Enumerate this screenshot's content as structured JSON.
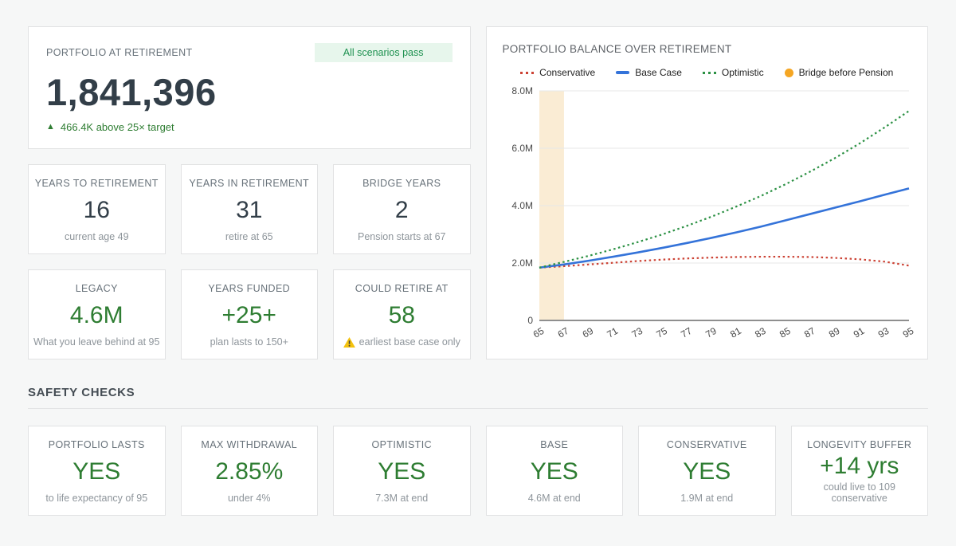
{
  "hero": {
    "label": "PORTFOLIO AT RETIREMENT",
    "value": "1,841,396",
    "badge": "All scenarios pass",
    "delta_icon": "▲",
    "delta": "466.4K above 25× target"
  },
  "stats": [
    {
      "label": "YEARS TO RETIREMENT",
      "value": "16",
      "sub": "current age 49"
    },
    {
      "label": "YEARS IN RETIREMENT",
      "value": "31",
      "sub": "retire at 65"
    },
    {
      "label": "BRIDGE YEARS",
      "value": "2",
      "sub": "Pension starts at 67"
    },
    {
      "label": "LEGACY",
      "value": "4.6M",
      "sub": "What you leave behind at 95"
    },
    {
      "label": "YEARS FUNDED",
      "value": "+25+",
      "sub": "plan lasts to 150+"
    },
    {
      "label": "COULD RETIRE AT",
      "value": "58",
      "sub": "earliest base case only",
      "icon": "warning-triangle"
    }
  ],
  "safety": {
    "header": "SAFETY CHECKS",
    "checks": [
      {
        "label": "PORTFOLIO LASTS",
        "value": "YES",
        "sub": "to life expectancy of 95"
      },
      {
        "label": "MAX WITHDRAWAL",
        "value": "2.85%",
        "sub": "under 4%"
      },
      {
        "label": "OPTIMISTIC",
        "value": "YES",
        "sub": "7.3M at end"
      },
      {
        "label": "BASE",
        "value": "YES",
        "sub": "4.6M at end"
      },
      {
        "label": "CONSERVATIVE",
        "value": "YES",
        "sub": "1.9M at end"
      },
      {
        "label": "LONGEVITY BUFFER",
        "value": "+14 yrs",
        "sub": "could live to 109 conservative"
      }
    ]
  },
  "chart_data": {
    "type": "line",
    "title": "PORTFOLIO BALANCE OVER RETIREMENT",
    "x": [
      65,
      67,
      69,
      71,
      73,
      75,
      77,
      79,
      81,
      83,
      85,
      87,
      89,
      91,
      93,
      95
    ],
    "x_unit": "age",
    "ylim": [
      0,
      8
    ],
    "y_unit": "millions",
    "yticks": [
      {
        "v": 0,
        "label": "0"
      },
      {
        "v": 2,
        "label": "2.0M"
      },
      {
        "v": 4,
        "label": "4.0M"
      },
      {
        "v": 6,
        "label": "6.0M"
      },
      {
        "v": 8,
        "label": "8.0M"
      }
    ],
    "grid": true,
    "legend_position": "top",
    "series": [
      {
        "name": "Conservative",
        "color": "#cc4234",
        "style": "dotted",
        "values": [
          1.84,
          1.89,
          1.95,
          2.01,
          2.07,
          2.12,
          2.16,
          2.19,
          2.21,
          2.22,
          2.22,
          2.21,
          2.18,
          2.13,
          2.05,
          1.91
        ]
      },
      {
        "name": "Base Case",
        "color": "#3473d9",
        "style": "solid",
        "values": [
          1.84,
          1.95,
          2.08,
          2.22,
          2.37,
          2.53,
          2.7,
          2.88,
          3.07,
          3.27,
          3.49,
          3.71,
          3.93,
          4.15,
          4.38,
          4.6
        ]
      },
      {
        "name": "Optimistic",
        "color": "#2c9144",
        "style": "dotted",
        "values": [
          1.84,
          2.04,
          2.25,
          2.48,
          2.73,
          3.0,
          3.3,
          3.62,
          3.97,
          4.34,
          4.75,
          5.19,
          5.66,
          6.17,
          6.72,
          7.3
        ]
      }
    ],
    "band": {
      "name": "Bridge before Pension",
      "color": "#f5a623",
      "fill": "#faecd4",
      "from": 65,
      "to": 67
    }
  },
  "colors": {
    "accent_green": "#2e7d32",
    "badge_bg": "#e7f6ec",
    "badge_text": "#1e9150",
    "value_dark": "#323e48",
    "warning_yellow": "#f4c20d"
  }
}
